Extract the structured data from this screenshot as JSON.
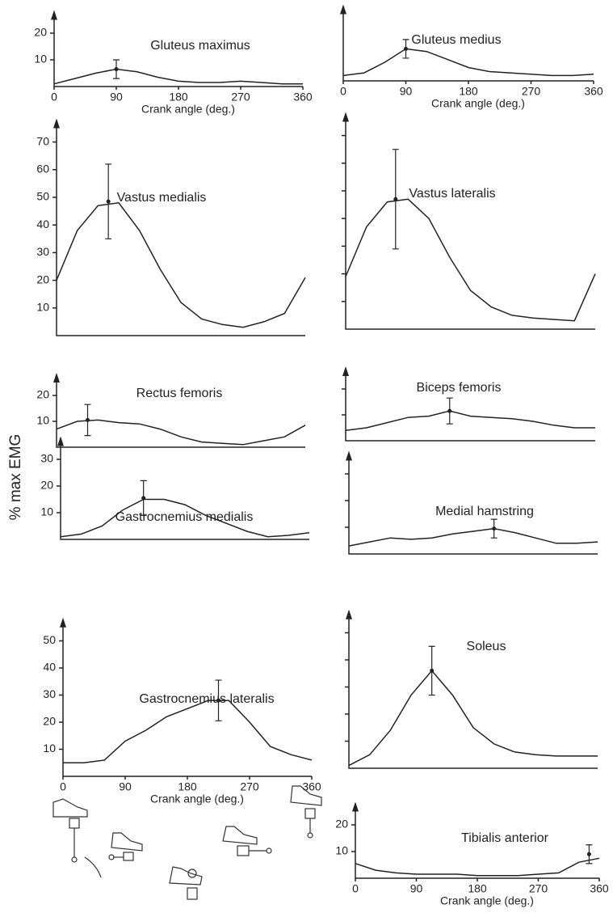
{
  "ylabel": "% max EMG",
  "chart_data": [
    {
      "type": "line",
      "title": "Gluteus maximus",
      "color": "#222",
      "x": [
        0,
        30,
        60,
        90,
        120,
        150,
        180,
        210,
        240,
        270,
        300,
        330,
        360
      ],
      "values": [
        1,
        3,
        5,
        6.5,
        5.5,
        3.5,
        2,
        1.5,
        1.5,
        2,
        1.5,
        1,
        1
      ],
      "xlim": [
        0,
        360
      ],
      "ylim": [
        0,
        25
      ],
      "yticks": [
        10,
        20
      ],
      "xticks": [
        0,
        90,
        180,
        270,
        360
      ],
      "xlabel": "Crank angle  (deg.)",
      "error_bar": {
        "x": 90,
        "value": 6.5,
        "error": 3.5
      }
    },
    {
      "type": "line",
      "title": "Gluteus medius",
      "color": "#222",
      "x": [
        0,
        30,
        60,
        90,
        120,
        150,
        180,
        210,
        240,
        270,
        300,
        330,
        360
      ],
      "values": [
        2,
        3,
        7,
        12,
        11,
        8,
        5,
        3.5,
        3,
        2.5,
        2,
        2,
        2.5
      ],
      "xlim": [
        0,
        360
      ],
      "ylim": [
        0,
        25
      ],
      "xticks": [
        0,
        90,
        180,
        270,
        360
      ],
      "xlabel": "Crank angle  (deg.)",
      "error_bar": {
        "x": 90,
        "value": 12,
        "error": 3.5
      }
    },
    {
      "type": "line",
      "title": "Vastus medialis",
      "color": "#222",
      "x": [
        0,
        30,
        60,
        90,
        120,
        150,
        180,
        210,
        240,
        270,
        300,
        330,
        360
      ],
      "values": [
        20,
        38,
        47,
        48,
        38,
        24,
        12,
        6,
        4,
        3,
        5,
        8,
        21
      ],
      "xlim": [
        0,
        360
      ],
      "ylim": [
        0,
        75
      ],
      "yticks": [
        10,
        20,
        30,
        40,
        50,
        60,
        70
      ],
      "error_bar": {
        "x": 75,
        "value": 48.5,
        "error": 13.5
      }
    },
    {
      "type": "line",
      "title": "Vastus lateralis",
      "color": "#222",
      "x": [
        0,
        30,
        60,
        90,
        120,
        150,
        180,
        210,
        240,
        270,
        300,
        330,
        360
      ],
      "values": [
        19,
        37,
        46,
        47,
        40,
        26,
        14,
        8,
        5,
        4,
        3.5,
        3,
        20
      ],
      "xlim": [
        0,
        360
      ],
      "ylim": [
        0,
        75
      ],
      "yticks": [
        10,
        20,
        30,
        40,
        50,
        60,
        70
      ],
      "show_ytick_labels": false,
      "error_bar": {
        "x": 72,
        "value": 47,
        "error": 18
      }
    },
    {
      "type": "line",
      "title": "Rectus femoris",
      "color": "#222",
      "x": [
        0,
        30,
        60,
        90,
        120,
        150,
        180,
        210,
        240,
        270,
        300,
        330,
        360
      ],
      "values": [
        7,
        10,
        10.5,
        9.5,
        9,
        7,
        4,
        2,
        1.5,
        1,
        2.5,
        4,
        8.5
      ],
      "xlim": [
        0,
        360
      ],
      "ylim": [
        0,
        25
      ],
      "yticks": [
        10,
        20
      ],
      "error_bar": {
        "x": 45,
        "value": 10.5,
        "error": 6
      }
    },
    {
      "type": "line",
      "title": "Biceps femoris",
      "color": "#222",
      "x": [
        0,
        30,
        60,
        90,
        120,
        150,
        180,
        210,
        240,
        270,
        300,
        330,
        360
      ],
      "values": [
        4,
        5,
        7,
        9,
        9.5,
        11.5,
        9.5,
        9,
        8.5,
        7.5,
        6,
        5,
        5
      ],
      "xlim": [
        0,
        360
      ],
      "ylim": [
        0,
        25
      ],
      "yticks": [
        10,
        20
      ],
      "show_ytick_labels": false,
      "error_bar": {
        "x": 150,
        "value": 11.5,
        "error": 5
      }
    },
    {
      "type": "line",
      "title": "Gastrocnemius medialis",
      "color": "#222",
      "x": [
        0,
        30,
        60,
        90,
        120,
        150,
        180,
        210,
        240,
        270,
        300,
        330,
        360
      ],
      "values": [
        1,
        2,
        5,
        11,
        15,
        15,
        13,
        9,
        6,
        3,
        1,
        1.5,
        2.5
      ],
      "xlim": [
        0,
        360
      ],
      "ylim": [
        0,
        35
      ],
      "yticks": [
        10,
        20,
        30
      ],
      "error_bar": {
        "x": 120,
        "value": 15.5,
        "error": 6.5
      }
    },
    {
      "type": "line",
      "title": "Medial hamstring",
      "color": "#222",
      "x": [
        0,
        30,
        60,
        90,
        120,
        150,
        180,
        210,
        240,
        270,
        300,
        330,
        360
      ],
      "values": [
        3,
        4.5,
        6,
        5.5,
        6,
        7.5,
        8.5,
        9.5,
        8,
        6,
        4,
        4,
        4.5
      ],
      "xlim": [
        0,
        360
      ],
      "ylim": [
        0,
        35
      ],
      "yticks": [
        10,
        20,
        30
      ],
      "show_ytick_labels": false,
      "error_bar": {
        "x": 210,
        "value": 9.5,
        "error": 3.5
      }
    },
    {
      "type": "line",
      "title": "Gastrocnemius lateralis",
      "color": "#222",
      "x": [
        0,
        30,
        60,
        90,
        120,
        150,
        180,
        210,
        240,
        270,
        300,
        330,
        360
      ],
      "values": [
        5,
        5,
        6,
        13,
        17,
        22,
        25,
        28,
        28,
        20,
        11,
        8,
        6
      ],
      "xlim": [
        0,
        360
      ],
      "ylim": [
        0,
        55
      ],
      "yticks": [
        10,
        20,
        30,
        40,
        50
      ],
      "xticks": [
        0,
        90,
        180,
        270,
        360
      ],
      "xlabel": "Crank angle  (deg.)",
      "error_bar": {
        "x": 225,
        "value": 28,
        "error": 7.5
      }
    },
    {
      "type": "line",
      "title": "Soleus",
      "color": "#222",
      "x": [
        0,
        30,
        60,
        90,
        120,
        150,
        180,
        210,
        240,
        270,
        300,
        330,
        360
      ],
      "values": [
        1,
        5,
        14,
        27,
        36,
        27,
        15,
        9,
        6,
        5,
        4.5,
        4.5,
        4.5
      ],
      "xlim": [
        0,
        360
      ],
      "ylim": [
        0,
        55
      ],
      "yticks": [
        10,
        20,
        30,
        40,
        50
      ],
      "show_ytick_labels": false,
      "error_bar": {
        "x": 120,
        "value": 36,
        "error": 9
      }
    },
    {
      "type": "line",
      "title": "Tibialis anterior",
      "color": "#222",
      "x": [
        0,
        30,
        60,
        90,
        120,
        150,
        180,
        210,
        240,
        270,
        300,
        330,
        360
      ],
      "values": [
        5.5,
        3,
        2,
        1.5,
        1.5,
        1.5,
        1,
        1,
        1,
        1.5,
        2,
        6,
        7.5
      ],
      "xlim": [
        0,
        360
      ],
      "ylim": [
        0,
        25
      ],
      "yticks": [
        10,
        20
      ],
      "xticks": [
        0,
        90,
        180,
        270,
        360
      ],
      "xlabel": "Crank angle  (deg.)",
      "error_bar": {
        "x": 345,
        "value": 9,
        "error": 3.5
      }
    }
  ]
}
